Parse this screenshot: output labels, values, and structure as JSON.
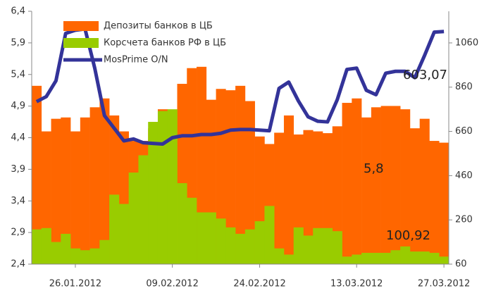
{
  "chart_data": {
    "type": "bar_line",
    "categories": [
      null,
      null,
      null,
      null,
      "26.01.2012",
      null,
      null,
      null,
      null,
      null,
      null,
      null,
      null,
      null,
      "09.02.2012",
      null,
      null,
      null,
      null,
      null,
      null,
      null,
      null,
      "24.02.2012",
      null,
      null,
      null,
      null,
      null,
      null,
      null,
      null,
      null,
      "13.03.2012",
      null,
      null,
      null,
      null,
      null,
      null,
      null,
      null,
      "27.03.2012"
    ],
    "series": [
      {
        "name": "Депозиты банков в ЦБ",
        "color": "#ff6600",
        "type": "bar",
        "axis": "y2",
        "values": [
          866,
          660,
          717,
          723,
          660,
          723,
          769,
          809,
          732,
          660,
          617,
          617,
          674,
          760,
          752,
          875,
          946,
          952,
          803,
          852,
          846,
          866,
          797,
          637,
          603,
          654,
          732,
          646,
          666,
          660,
          652,
          683,
          789,
          809,
          723,
          769,
          775,
          775,
          760,
          674,
          717,
          617,
          609
        ]
      },
      {
        "name": "Корсчета банков РФ в ЦБ",
        "color": "#99cc00",
        "type": "bar",
        "axis": "y2",
        "values": [
          217,
          223,
          160,
          197,
          131,
          123,
          131,
          169,
          374,
          332,
          474,
          552,
          703,
          752,
          760,
          426,
          360,
          294,
          294,
          266,
          226,
          197,
          217,
          254,
          323,
          131,
          103,
          226,
          189,
          223,
          223,
          209,
          94,
          103,
          111,
          111,
          111,
          123,
          140,
          117,
          117,
          111,
          94
        ]
      },
      {
        "name": "MosPrime O/N",
        "color": "#333399",
        "type": "line",
        "values": [
          4.97,
          5.05,
          5.3,
          6.05,
          6.1,
          6.12,
          5.5,
          4.75,
          4.55,
          4.35,
          4.38,
          4.32,
          4.31,
          4.3,
          4.4,
          4.43,
          4.43,
          4.45,
          4.45,
          4.47,
          4.52,
          4.53,
          4.53,
          4.52,
          4.51,
          5.18,
          5.28,
          4.98,
          4.73,
          4.66,
          4.65,
          5.0,
          5.48,
          5.5,
          5.15,
          5.08,
          5.42,
          5.45,
          5.45,
          5.35,
          5.7,
          6.07,
          6.08
        ]
      }
    ],
    "ylim": [
      2.4,
      6.4
    ],
    "yticks": [
      {
        "value": 2.4,
        "label": "2,4"
      },
      {
        "value": 2.9,
        "label": "2,9"
      },
      {
        "value": 3.4,
        "label": "3,4"
      },
      {
        "value": 3.9,
        "label": "3,9"
      },
      {
        "value": 4.4,
        "label": "4,4"
      },
      {
        "value": 4.9,
        "label": "4,9"
      },
      {
        "value": 5.4,
        "label": "5,4"
      },
      {
        "value": 5.9,
        "label": "5,9"
      },
      {
        "value": 6.4,
        "label": "6,4"
      }
    ],
    "y2lim": [
      60,
      1203
    ],
    "y2ticks": [
      60,
      260,
      460,
      660,
      860,
      1060
    ],
    "annotations": [
      "603,07",
      "5,8",
      "100,92"
    ]
  }
}
